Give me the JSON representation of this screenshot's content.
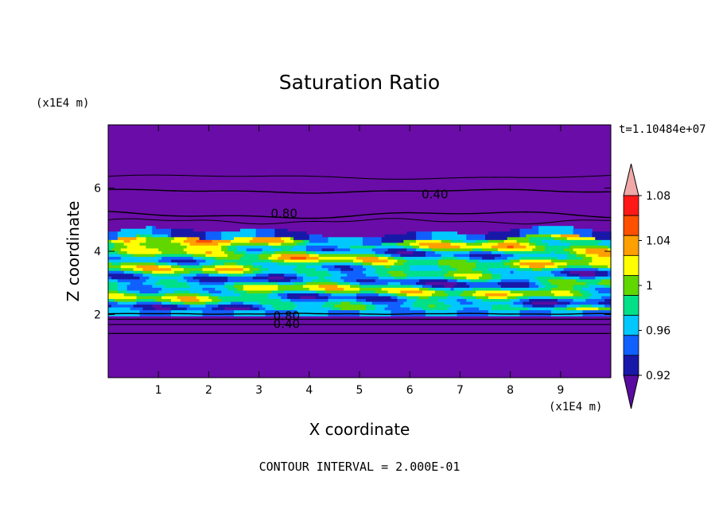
{
  "chart_data": {
    "type": "heatmap",
    "title": "Saturation Ratio",
    "xlabel": "X coordinate",
    "ylabel": "Z coordinate",
    "x_unit": "(x1E4 m)",
    "y_unit": "(x1E4 m)",
    "time_label": "t=1.10484e+07",
    "footer": "CONTOUR INTERVAL = 2.000E-01",
    "xlim": [
      0,
      10
    ],
    "ylim": [
      0,
      8
    ],
    "x_ticks": [
      "1",
      "2",
      "3",
      "4",
      "5",
      "6",
      "7",
      "8",
      "9"
    ],
    "y_ticks": [
      "2",
      "4",
      "6"
    ],
    "colorbar": {
      "levels": [
        0.9,
        0.92,
        0.94,
        0.96,
        0.98,
        1.0,
        1.02,
        1.04,
        1.06,
        1.08,
        1.1
      ],
      "colors": [
        "#5a0ca0",
        "#1818a8",
        "#1060ff",
        "#00c8ff",
        "#00e088",
        "#60d800",
        "#ffff00",
        "#ffa000",
        "#ff5000",
        "#ff1818",
        "#f0a8a8"
      ],
      "labels": [
        "0.92",
        "0.96",
        "1",
        "1.04",
        "1.08"
      ]
    },
    "contour_labels": [
      {
        "text": "0.40",
        "x": 6.5,
        "z": 5.8
      },
      {
        "text": "0.80",
        "x": 3.5,
        "z": 5.2
      },
      {
        "text": "0.80",
        "x": 3.55,
        "z": 1.95
      },
      {
        "text": "0.40",
        "x": 3.55,
        "z": 1.7
      }
    ],
    "background_color": "#6a0ca8"
  }
}
